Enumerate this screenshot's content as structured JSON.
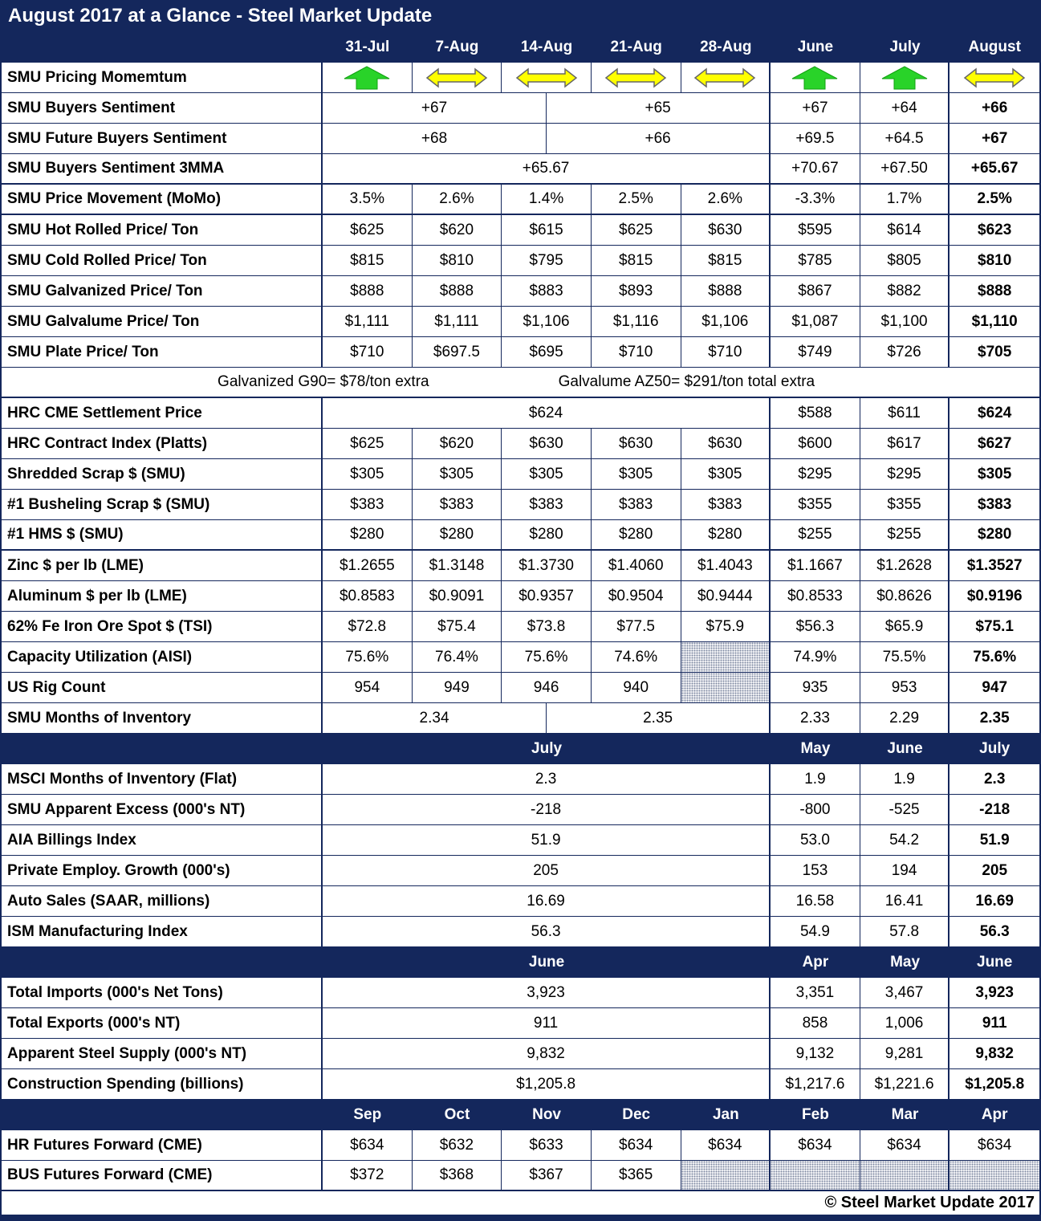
{
  "title": "August 2017 at a Glance - Steel Market Update",
  "copyright": "© Steel Market Update 2017",
  "colors": {
    "navy": "#14275C",
    "green_arrow": "#29D329",
    "green_arrow_outline": "#12A012",
    "yellow_arrow": "#FFFF00",
    "yellow_arrow_outline": "#666666"
  },
  "columns": [
    "31-Jul",
    "7-Aug",
    "14-Aug",
    "21-Aug",
    "28-Aug",
    "June",
    "July",
    "August"
  ],
  "rows": {
    "momentum": {
      "label": "SMU Pricing Momemtum",
      "arrows": [
        "up",
        "flat",
        "flat",
        "flat",
        "flat",
        "up",
        "up",
        "flat"
      ]
    },
    "buyers": {
      "label": "SMU Buyers Sentiment",
      "w1": "+67",
      "w2": "+65",
      "m": [
        "+67",
        "+64",
        "+66"
      ]
    },
    "future": {
      "label": "SMU Future Buyers Sentiment",
      "w1": "+68",
      "w2": "+66",
      "m": [
        "+69.5",
        "+64.5",
        "+67"
      ]
    },
    "mma": {
      "label": "SMU Buyers Sentiment 3MMA",
      "w": "+65.67",
      "m": [
        "+70.67",
        "+67.50",
        "+65.67"
      ]
    },
    "momo": {
      "label": "SMU Price Movement (MoMo)",
      "v": [
        "3.5%",
        "2.6%",
        "1.4%",
        "2.5%",
        "2.6%",
        "-3.3%",
        "1.7%",
        "2.5%"
      ]
    },
    "hot": {
      "label": "SMU Hot Rolled Price/ Ton",
      "v": [
        "$625",
        "$620",
        "$615",
        "$625",
        "$630",
        "$595",
        "$614",
        "$623"
      ]
    },
    "cold": {
      "label": "SMU Cold Rolled Price/ Ton",
      "v": [
        "$815",
        "$810",
        "$795",
        "$815",
        "$815",
        "$785",
        "$805",
        "$810"
      ]
    },
    "galvanized": {
      "label": "SMU Galvanized Price/ Ton",
      "v": [
        "$888",
        "$888",
        "$883",
        "$893",
        "$888",
        "$867",
        "$882",
        "$888"
      ]
    },
    "galvalume": {
      "label": "SMU Galvalume Price/ Ton",
      "v": [
        "$1,111",
        "$1,111",
        "$1,106",
        "$1,116",
        "$1,106",
        "$1,087",
        "$1,100",
        "$1,110"
      ]
    },
    "plate": {
      "label": "SMU Plate Price/ Ton",
      "v": [
        "$710",
        "$697.5",
        "$695",
        "$710",
        "$710",
        "$749",
        "$726",
        "$705"
      ]
    },
    "note": {
      "left": "Galvanized G90= $78/ton extra",
      "right": "Galvalume AZ50= $291/ton total extra"
    },
    "cme": {
      "label": "HRC CME Settlement Price",
      "w": "$624",
      "m": [
        "$588",
        "$611",
        "$624"
      ]
    },
    "platts": {
      "label": "HRC Contract Index (Platts)",
      "v": [
        "$625",
        "$620",
        "$630",
        "$630",
        "$630",
        "$600",
        "$617",
        "$627"
      ]
    },
    "shredded": {
      "label": "Shredded Scrap $ (SMU)",
      "v": [
        "$305",
        "$305",
        "$305",
        "$305",
        "$305",
        "$295",
        "$295",
        "$305"
      ]
    },
    "busheling": {
      "label": "#1 Busheling Scrap $ (SMU)",
      "v": [
        "$383",
        "$383",
        "$383",
        "$383",
        "$383",
        "$355",
        "$355",
        "$383"
      ]
    },
    "hms": {
      "label": "#1 HMS $ (SMU)",
      "v": [
        "$280",
        "$280",
        "$280",
        "$280",
        "$280",
        "$255",
        "$255",
        "$280"
      ]
    },
    "zinc": {
      "label": "Zinc $ per lb (LME)",
      "v": [
        "$1.2655",
        "$1.3148",
        "$1.3730",
        "$1.4060",
        "$1.4043",
        "$1.1667",
        "$1.2628",
        "$1.3527"
      ]
    },
    "aluminum": {
      "label": "Aluminum $ per lb (LME)",
      "v": [
        "$0.8583",
        "$0.9091",
        "$0.9357",
        "$0.9504",
        "$0.9444",
        "$0.8533",
        "$0.8626",
        "$0.9196"
      ]
    },
    "ore": {
      "label": "62% Fe Iron Ore Spot $ (TSI)",
      "v": [
        "$72.8",
        "$75.4",
        "$73.8",
        "$77.5",
        "$75.9",
        "$56.3",
        "$65.9",
        "$75.1"
      ]
    },
    "capacity": {
      "label": "Capacity Utilization (AISI)",
      "v": [
        "75.6%",
        "76.4%",
        "75.6%",
        "74.6%",
        "",
        "74.9%",
        "75.5%",
        "75.6%"
      ]
    },
    "rig": {
      "label": "US Rig Count",
      "v": [
        "954",
        "949",
        "946",
        "940",
        "",
        "935",
        "953",
        "947"
      ]
    },
    "inventory": {
      "label": "SMU Months of Inventory",
      "w1": "2.34",
      "w2": "2.35",
      "m": [
        "2.33",
        "2.29",
        "2.35"
      ]
    },
    "sub1": {
      "w": "July",
      "m": [
        "May",
        "June",
        "July"
      ]
    },
    "msci": {
      "label": "MSCI Months of Inventory (Flat)",
      "w": "2.3",
      "m": [
        "1.9",
        "1.9",
        "2.3"
      ]
    },
    "excess": {
      "label": "SMU Apparent Excess (000's NT)",
      "w": "-218",
      "m": [
        "-800",
        "-525",
        "-218"
      ]
    },
    "aia": {
      "label": "AIA Billings Index",
      "w": "51.9",
      "m": [
        "53.0",
        "54.2",
        "51.9"
      ]
    },
    "employ": {
      "label": "Private Employ. Growth (000's)",
      "w": "205",
      "m": [
        "153",
        "194",
        "205"
      ]
    },
    "auto": {
      "label": "Auto Sales (SAAR, millions)",
      "w": "16.69",
      "m": [
        "16.58",
        "16.41",
        "16.69"
      ]
    },
    "ism": {
      "label": "ISM Manufacturing Index",
      "w": "56.3",
      "m": [
        "54.9",
        "57.8",
        "56.3"
      ]
    },
    "sub2": {
      "w": "June",
      "m": [
        "Apr",
        "May",
        "June"
      ]
    },
    "imports": {
      "label": "Total Imports (000's Net Tons)",
      "w": "3,923",
      "m": [
        "3,351",
        "3,467",
        "3,923"
      ]
    },
    "exports": {
      "label": "Total Exports (000's NT)",
      "w": "911",
      "m": [
        "858",
        "1,006",
        "911"
      ]
    },
    "supply": {
      "label": "Apparent Steel Supply (000's NT)",
      "w": "9,832",
      "m": [
        "9,132",
        "9,281",
        "9,832"
      ]
    },
    "construction": {
      "label": "Construction Spending (billions)",
      "w": "$1,205.8",
      "m": [
        "$1,217.6",
        "$1,221.6",
        "$1,205.8"
      ]
    },
    "sub3": {
      "v": [
        "Sep",
        "Oct",
        "Nov",
        "Dec",
        "Jan",
        "Feb",
        "Mar",
        "Apr"
      ]
    },
    "hrfut": {
      "label": "HR Futures Forward (CME)",
      "v": [
        "$634",
        "$632",
        "$633",
        "$634",
        "$634",
        "$634",
        "$634",
        "$634"
      ]
    },
    "busfut": {
      "label": "BUS Futures Forward (CME)",
      "v": [
        "$372",
        "$368",
        "$367",
        "$365"
      ]
    }
  }
}
